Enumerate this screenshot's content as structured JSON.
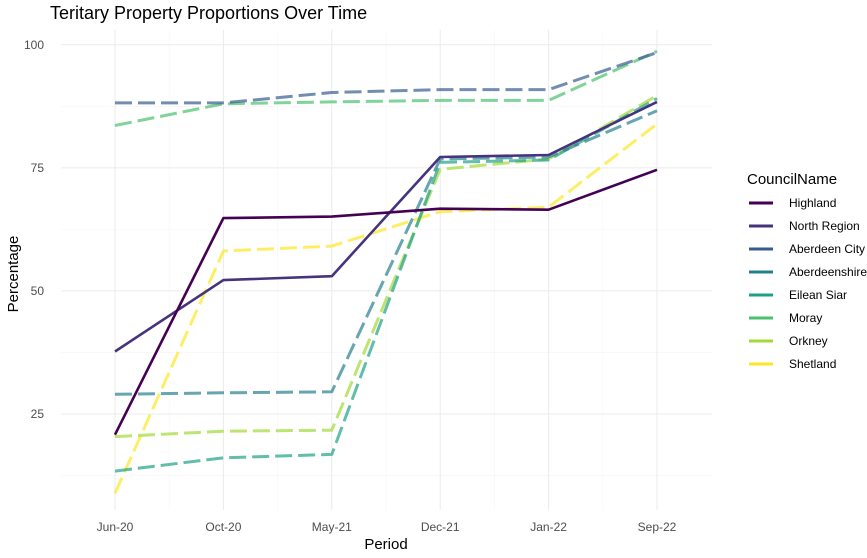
{
  "chart_data": {
    "type": "line",
    "title": "Teritary Property Proportions Over Time",
    "xlabel": "Period",
    "ylabel": "Percentage",
    "categories": [
      "Jun-20",
      "Oct-20",
      "May-21",
      "Dec-21",
      "Jan-22",
      "Sep-22"
    ],
    "ylim": [
      5.5,
      103
    ],
    "yticks": [
      25,
      50,
      75,
      100
    ],
    "grid": true,
    "legend": {
      "title": "CouncilName",
      "position": "right"
    },
    "series": [
      {
        "name": "Highland",
        "color": "#440154",
        "dashed": false,
        "values": [
          20.8,
          64.8,
          65.1,
          66.7,
          66.5,
          74.6
        ]
      },
      {
        "name": "North Region",
        "color": "#46337e",
        "dashed": false,
        "values": [
          37.7,
          52.2,
          53.0,
          77.2,
          77.6,
          88.4
        ]
      },
      {
        "name": "Aberdeen City",
        "color": "#365c8d",
        "dashed": true,
        "values": [
          88.2,
          88.2,
          90.3,
          90.9,
          90.9,
          98.4
        ]
      },
      {
        "name": "Aberdeenshire",
        "color": "#277f8e",
        "dashed": true,
        "values": [
          29.0,
          29.3,
          29.5,
          76.8,
          77.2,
          86.6
        ]
      },
      {
        "name": "Eilean Siar",
        "color": "#1fa187",
        "dashed": true,
        "values": [
          13.4,
          16.1,
          16.8,
          76.1,
          76.6,
          89.1
        ]
      },
      {
        "name": "Moray",
        "color": "#4ac16d",
        "dashed": true,
        "values": [
          83.6,
          88.0,
          88.4,
          88.7,
          88.7,
          98.7
        ]
      },
      {
        "name": "Orkney",
        "color": "#a0da39",
        "dashed": true,
        "values": [
          20.4,
          21.5,
          21.7,
          74.7,
          76.8,
          89.7
        ]
      },
      {
        "name": "Shetland",
        "color": "#fde725",
        "dashed": true,
        "values": [
          8.9,
          58.1,
          59.1,
          66.1,
          67.0,
          83.9
        ]
      }
    ]
  }
}
